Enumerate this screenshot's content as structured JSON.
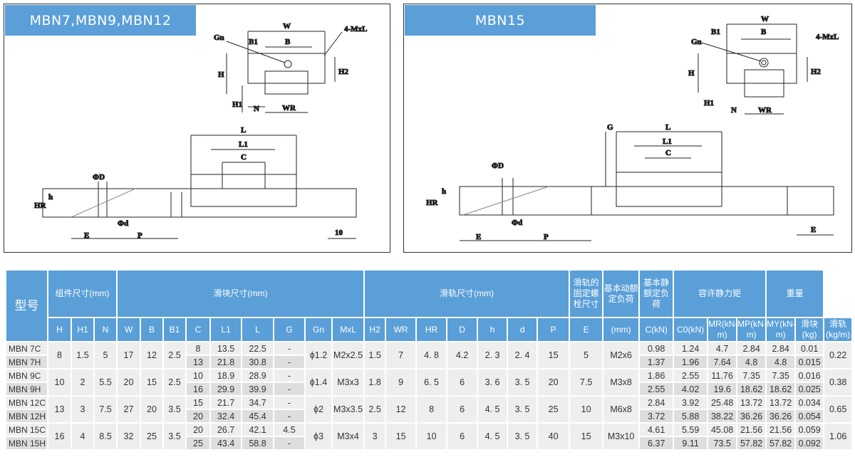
{
  "panels": [
    {
      "title": "MBN7,MBN9,MBN12",
      "labels": {
        "W": "W",
        "B1": "B1",
        "B": "B",
        "Gn": "Gn",
        "MxL": "4-MxL",
        "H": "H",
        "H2": "H2",
        "H1": "H1",
        "N": "N",
        "WR": "WR",
        "L": "L",
        "L1": "L1",
        "C": "C",
        "D": "ΦD",
        "HR": "HR",
        "h": "h",
        "d": "Φd",
        "E": "E",
        "P": "P",
        "ten": "10"
      }
    },
    {
      "title": "MBN15",
      "labels": {
        "W": "W",
        "B1": "B1",
        "B": "B",
        "Gn": "Gn",
        "MxL": "4-MxL",
        "H": "H",
        "H2": "H2",
        "H1": "H1",
        "N": "N",
        "WR": "WR",
        "G": "G",
        "L": "L",
        "L1": "L1",
        "C": "C",
        "D": "ΦD",
        "HR": "HR",
        "h": "h",
        "d": "Φd",
        "E": "E",
        "P": "P",
        "E2": "E"
      }
    }
  ],
  "table": {
    "model_header": "型号",
    "groups": [
      "组件尺寸(mm)",
      "滑块尺寸(mm)",
      "滑轨尺寸(mm)",
      "滑轨的固定螺栓尺寸",
      "基本动额定负荷",
      "基本静额定负荷",
      "容许静力矩",
      "重量"
    ],
    "columns": [
      "H",
      "H1",
      "N",
      "W",
      "B",
      "B1",
      "C",
      "L1",
      "L",
      "G",
      "Gn",
      "MxL",
      "H2",
      "WR",
      "HR",
      "D",
      "h",
      "d",
      "P",
      "E",
      "(mm)",
      "C(kN)",
      "C0(kN)",
      "MR(kN-m)",
      "MP(kN-m)",
      "MY(kN-m)",
      "滑块(kg)",
      "滑轨(kg/m)"
    ],
    "groups_rows": [
      {
        "shared": {
          "H": "8",
          "H1": "1.5",
          "N": "5",
          "W": "17",
          "B": "12",
          "B1": "2.5",
          "Gn": "ϕ1.2",
          "MxL": "M2x2.5",
          "H2": "1.5",
          "WR": "7",
          "HR": "4. 8",
          "D": "4.2",
          "h": "2. 3",
          "d": "2. 4",
          "P": "15",
          "E": "5",
          "bolt": "M2x6",
          "rail_kg": "0.22"
        },
        "rows": [
          {
            "model": "MBN 7C",
            "C": "8",
            "L1": "13.5",
            "L": "22.5",
            "G": "-",
            "Cd": "0.98",
            "C0": "1.24",
            "MR": "4.7",
            "MP": "2.84",
            "MY": "2.84",
            "block_kg": "0.01"
          },
          {
            "model": "MBN 7H",
            "C": "13",
            "L1": "21.8",
            "L": "30.8",
            "G": "-",
            "Cd": "1.37",
            "C0": "1.96",
            "MR": "7.64",
            "MP": "4.8",
            "MY": "4.8",
            "block_kg": "0.015"
          }
        ]
      },
      {
        "shared": {
          "H": "10",
          "H1": "2",
          "N": "5.5",
          "W": "20",
          "B": "15",
          "B1": "2.5",
          "Gn": "ϕ1.4",
          "MxL": "M3x3",
          "H2": "1.8",
          "WR": "9",
          "HR": "6. 5",
          "D": "6",
          "h": "3. 6",
          "d": "3. 5",
          "P": "20",
          "E": "7.5",
          "bolt": "M3x8",
          "rail_kg": "0.38"
        },
        "rows": [
          {
            "model": "MBN 9C",
            "C": "10",
            "L1": "18.9",
            "L": "28.9",
            "G": "-",
            "Cd": "1.86",
            "C0": "2.55",
            "MR": "11.76",
            "MP": "7.35",
            "MY": "7.35",
            "block_kg": "0.016"
          },
          {
            "model": "MBN 9H",
            "C": "16",
            "L1": "29.9",
            "L": "39.9",
            "G": "-",
            "Cd": "2.55",
            "C0": "4.02",
            "MR": "19.6",
            "MP": "18.62",
            "MY": "18.62",
            "block_kg": "0.025"
          }
        ]
      },
      {
        "shared": {
          "H": "13",
          "H1": "3",
          "N": "7.5",
          "W": "27",
          "B": "20",
          "B1": "3.5",
          "Gn": "ϕ2",
          "MxL": "M3x3.5",
          "H2": "2.5",
          "WR": "12",
          "HR": "8",
          "D": "6",
          "h": "4. 5",
          "d": "3. 5",
          "P": "25",
          "E": "10",
          "bolt": "M6x8",
          "rail_kg": "0.65"
        },
        "rows": [
          {
            "model": "MBN 12C",
            "C": "15",
            "L1": "21.7",
            "L": "34.7",
            "G": "-",
            "Cd": "2.84",
            "C0": "3.92",
            "MR": "25.48",
            "MP": "13.72",
            "MY": "13.72",
            "block_kg": "0.034"
          },
          {
            "model": "MBN 12H",
            "C": "20",
            "L1": "32.4",
            "L": "45.4",
            "G": "-",
            "Cd": "3.72",
            "C0": "5.88",
            "MR": "38.22",
            "MP": "36.26",
            "MY": "36.26",
            "block_kg": "0.054"
          }
        ]
      },
      {
        "shared": {
          "H": "16",
          "H1": "4",
          "N": "8.5",
          "W": "32",
          "B": "25",
          "B1": "3.5",
          "Gn": "ϕ3",
          "MxL": "M3x4",
          "H2": "3",
          "WR": "15",
          "HR": "10",
          "D": "6",
          "h": "4. 5",
          "d": "3. 5",
          "P": "40",
          "E": "15",
          "bolt": "M3x10",
          "rail_kg": "1.06"
        },
        "rows": [
          {
            "model": "MBN 15C",
            "C": "20",
            "L1": "26.7",
            "L": "42.1",
            "G": "4.5",
            "Cd": "4.61",
            "C0": "5.59",
            "MR": "45.08",
            "MP": "21.56",
            "MY": "21.56",
            "block_kg": "0.059"
          },
          {
            "model": "MBN 15H",
            "C": "25",
            "L1": "43.4",
            "L": "58.8",
            "G": "-",
            "Cd": "6.37",
            "C0": "9.11",
            "MR": "73.5",
            "MP": "57.82",
            "MY": "57.82",
            "block_kg": "0.092"
          }
        ]
      }
    ]
  },
  "colors": {
    "header": "#5a9fd8",
    "row_light": "#eeeeee",
    "row_dark": "#dedede"
  }
}
